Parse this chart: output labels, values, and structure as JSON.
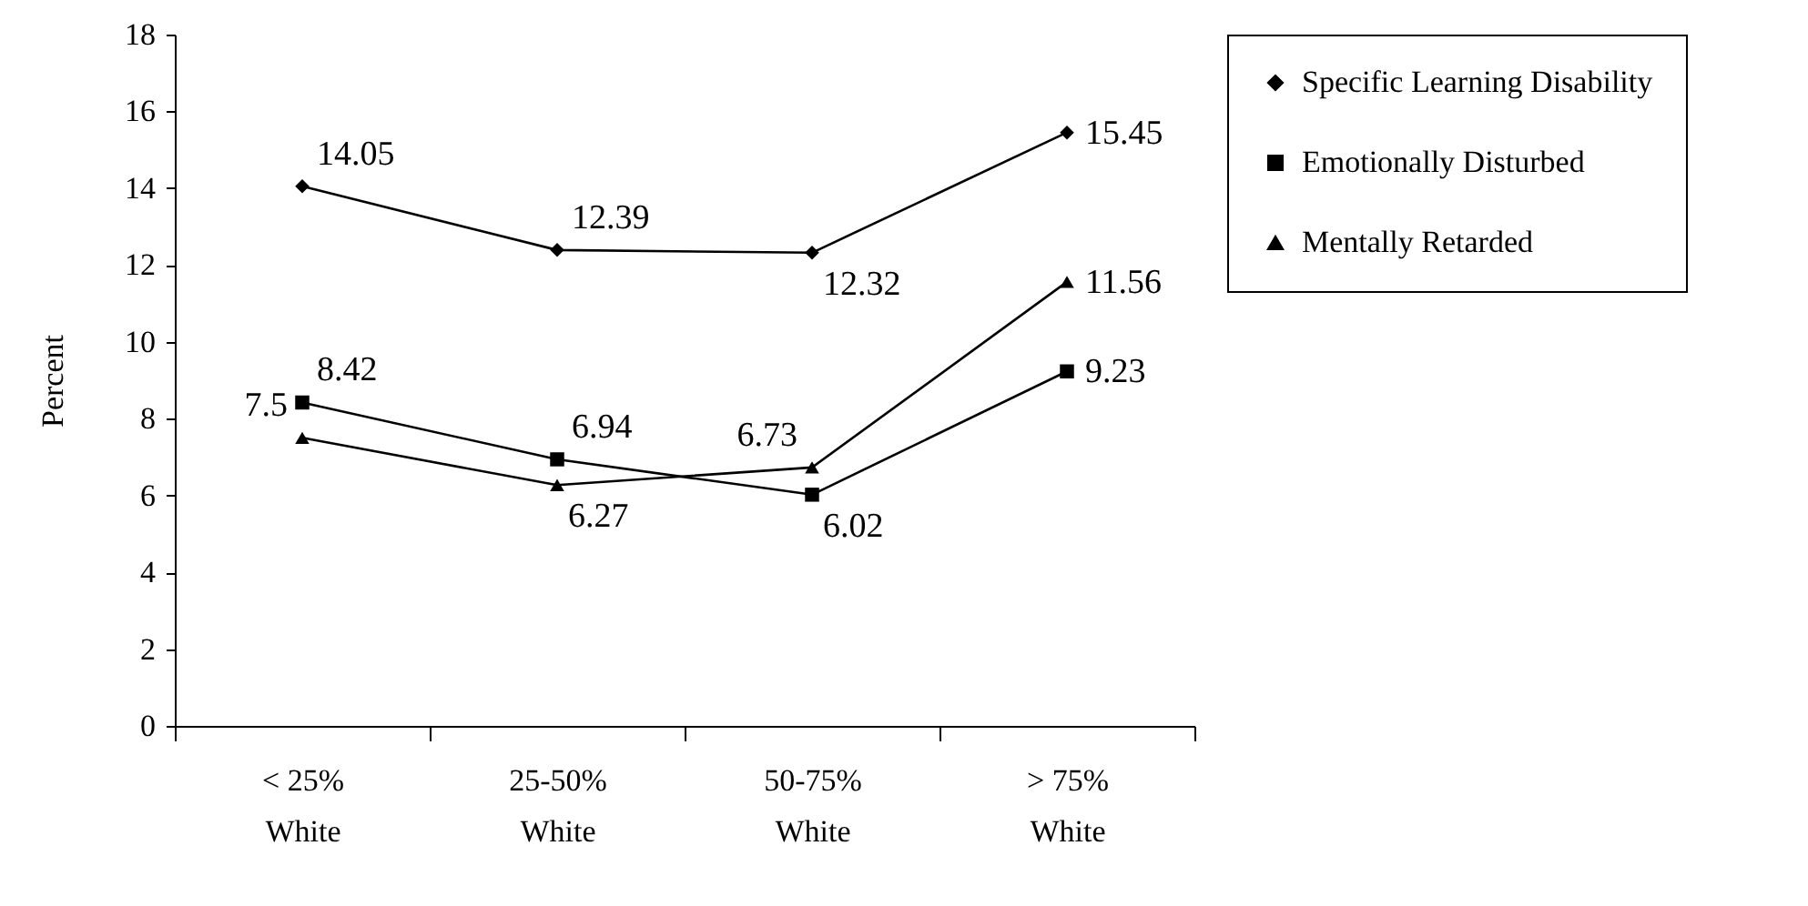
{
  "chart_data": {
    "type": "line",
    "ylabel": "Percent",
    "categories": [
      "< 25% White",
      "25-50% White",
      "50-75% White",
      "> 75% White"
    ],
    "series": [
      {
        "name": "Specific Learning Disability",
        "color": "#000000",
        "marker": "diamond",
        "values": [
          14.05,
          12.39,
          12.32,
          15.45
        ]
      },
      {
        "name": "Emotionally Disturbed",
        "color": "#000000",
        "marker": "square",
        "values": [
          8.42,
          6.94,
          6.02,
          9.23
        ]
      },
      {
        "name": "Mentally Retarded",
        "color": "#000000",
        "marker": "triangle",
        "values": [
          7.5,
          6.27,
          6.73,
          11.56
        ]
      }
    ],
    "ylim": [
      0,
      18
    ],
    "yticks": [
      0,
      2,
      4,
      6,
      8,
      10,
      12,
      14,
      16,
      18
    ],
    "grid": false,
    "legend": "right",
    "data_labels": true,
    "line_style": "solid"
  }
}
